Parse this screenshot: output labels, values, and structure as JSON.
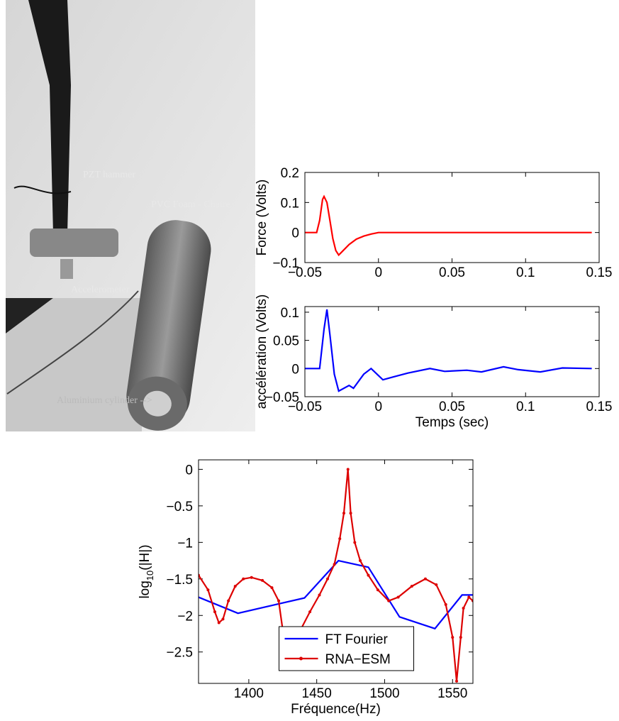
{
  "photo": {
    "labels": [
      "PZT hammer",
      "PVC Foam - Chaire",
      "Accelerometer",
      "Aluminium cylinder -->"
    ]
  },
  "chart_data": [
    {
      "type": "line",
      "ylabel": "Force (Volts)",
      "xlim": [
        -0.05,
        0.15
      ],
      "xticks": [
        {
          "value": -0.05,
          "label": "−0.05"
        },
        0,
        0.05,
        0.1,
        0.15
      ],
      "ylim": [
        -0.1,
        0.2
      ],
      "yticks": [
        {
          "value": -0.1,
          "label": "−0.1"
        },
        0,
        0.1,
        0.2
      ],
      "series": [
        {
          "color": "#ff0000",
          "x": [
            -0.05,
            -0.042,
            -0.04,
            -0.038,
            -0.037,
            -0.035,
            -0.033,
            -0.031,
            -0.029,
            -0.027,
            -0.025,
            -0.02,
            -0.015,
            -0.01,
            -0.005,
            0,
            0.05,
            0.1,
            0.145
          ],
          "values": [
            0,
            0,
            0.04,
            0.11,
            0.12,
            0.1,
            0.04,
            -0.02,
            -0.06,
            -0.075,
            -0.065,
            -0.04,
            -0.022,
            -0.012,
            -0.005,
            0,
            0,
            0,
            0
          ]
        }
      ]
    },
    {
      "type": "line",
      "xlabel": "Temps (sec)",
      "ylabel": "accélération (Volts)",
      "xlim": [
        -0.05,
        0.15
      ],
      "xticks": [
        {
          "value": -0.05,
          "label": "−0.05"
        },
        0,
        0.05,
        0.1,
        0.15
      ],
      "ylim": [
        -0.05,
        0.11
      ],
      "yticks": [
        {
          "value": -0.05,
          "label": "−0.05"
        },
        0,
        0.05,
        0.1
      ],
      "series": [
        {
          "color": "#0000ff",
          "x": [
            -0.05,
            -0.04,
            -0.037,
            -0.035,
            -0.033,
            -0.03,
            -0.027,
            -0.02,
            -0.017,
            -0.01,
            -0.005,
            0.003,
            0.01,
            0.02,
            0.035,
            0.045,
            0.06,
            0.07,
            0.085,
            0.095,
            0.11,
            0.125,
            0.145
          ],
          "values": [
            0,
            0,
            0.07,
            0.105,
            0.06,
            -0.01,
            -0.04,
            -0.03,
            -0.035,
            -0.01,
            0,
            -0.02,
            -0.015,
            -0.008,
            0,
            -0.005,
            -0.003,
            -0.006,
            0.003,
            -0.002,
            -0.006,
            0.001,
            0
          ]
        }
      ]
    },
    {
      "type": "line",
      "xlabel": "Fréquence(Hz)",
      "ylabel": {
        "base": "log",
        "sub": "10",
        "rest": "(|H|)"
      },
      "legend": "lower center",
      "xlim": [
        1363,
        1565
      ],
      "xticks": [
        1400,
        1450,
        1500,
        1550
      ],
      "ylim": [
        -2.93,
        0.13
      ],
      "yticks": [
        {
          "value": -2.5,
          "label": "−2.5"
        },
        {
          "value": -2,
          "label": "−2"
        },
        {
          "value": -1.5,
          "label": "−1.5"
        },
        {
          "value": -1,
          "label": "−1"
        },
        {
          "value": -0.5,
          "label": "−0.5"
        },
        0
      ],
      "series": [
        {
          "name": "FT Fourier",
          "color": "#0000ff",
          "x": [
            1363,
            1392,
            1420,
            1441,
            1466,
            1488,
            1511,
            1537,
            1557,
            1565
          ],
          "values": [
            -1.75,
            -1.97,
            -1.85,
            -1.76,
            -1.25,
            -1.34,
            -2.02,
            -2.18,
            -1.72,
            -1.72
          ]
        },
        {
          "name": "RNA−ESM",
          "color": "#dd0000",
          "marker": true,
          "x": [
            1363,
            1370,
            1375,
            1378,
            1381,
            1385,
            1390,
            1396,
            1402,
            1410,
            1417,
            1422,
            1425,
            1428,
            1432,
            1438,
            1445,
            1452,
            1458,
            1463,
            1467,
            1470,
            1473,
            1475,
            1478,
            1482,
            1488,
            1495,
            1503,
            1510,
            1520,
            1530,
            1538,
            1545,
            1550,
            1553,
            1556,
            1558,
            1562,
            1565
          ],
          "values": [
            -1.45,
            -1.65,
            -1.95,
            -2.1,
            -2.05,
            -1.8,
            -1.6,
            -1.5,
            -1.48,
            -1.52,
            -1.62,
            -1.8,
            -2.2,
            -2.7,
            -2.55,
            -2.2,
            -1.95,
            -1.72,
            -1.5,
            -1.3,
            -0.95,
            -0.6,
            0,
            -0.6,
            -1.0,
            -1.25,
            -1.45,
            -1.65,
            -1.8,
            -1.75,
            -1.6,
            -1.5,
            -1.58,
            -1.85,
            -2.3,
            -2.9,
            -2.3,
            -1.9,
            -1.75,
            -1.8
          ]
        }
      ]
    }
  ]
}
